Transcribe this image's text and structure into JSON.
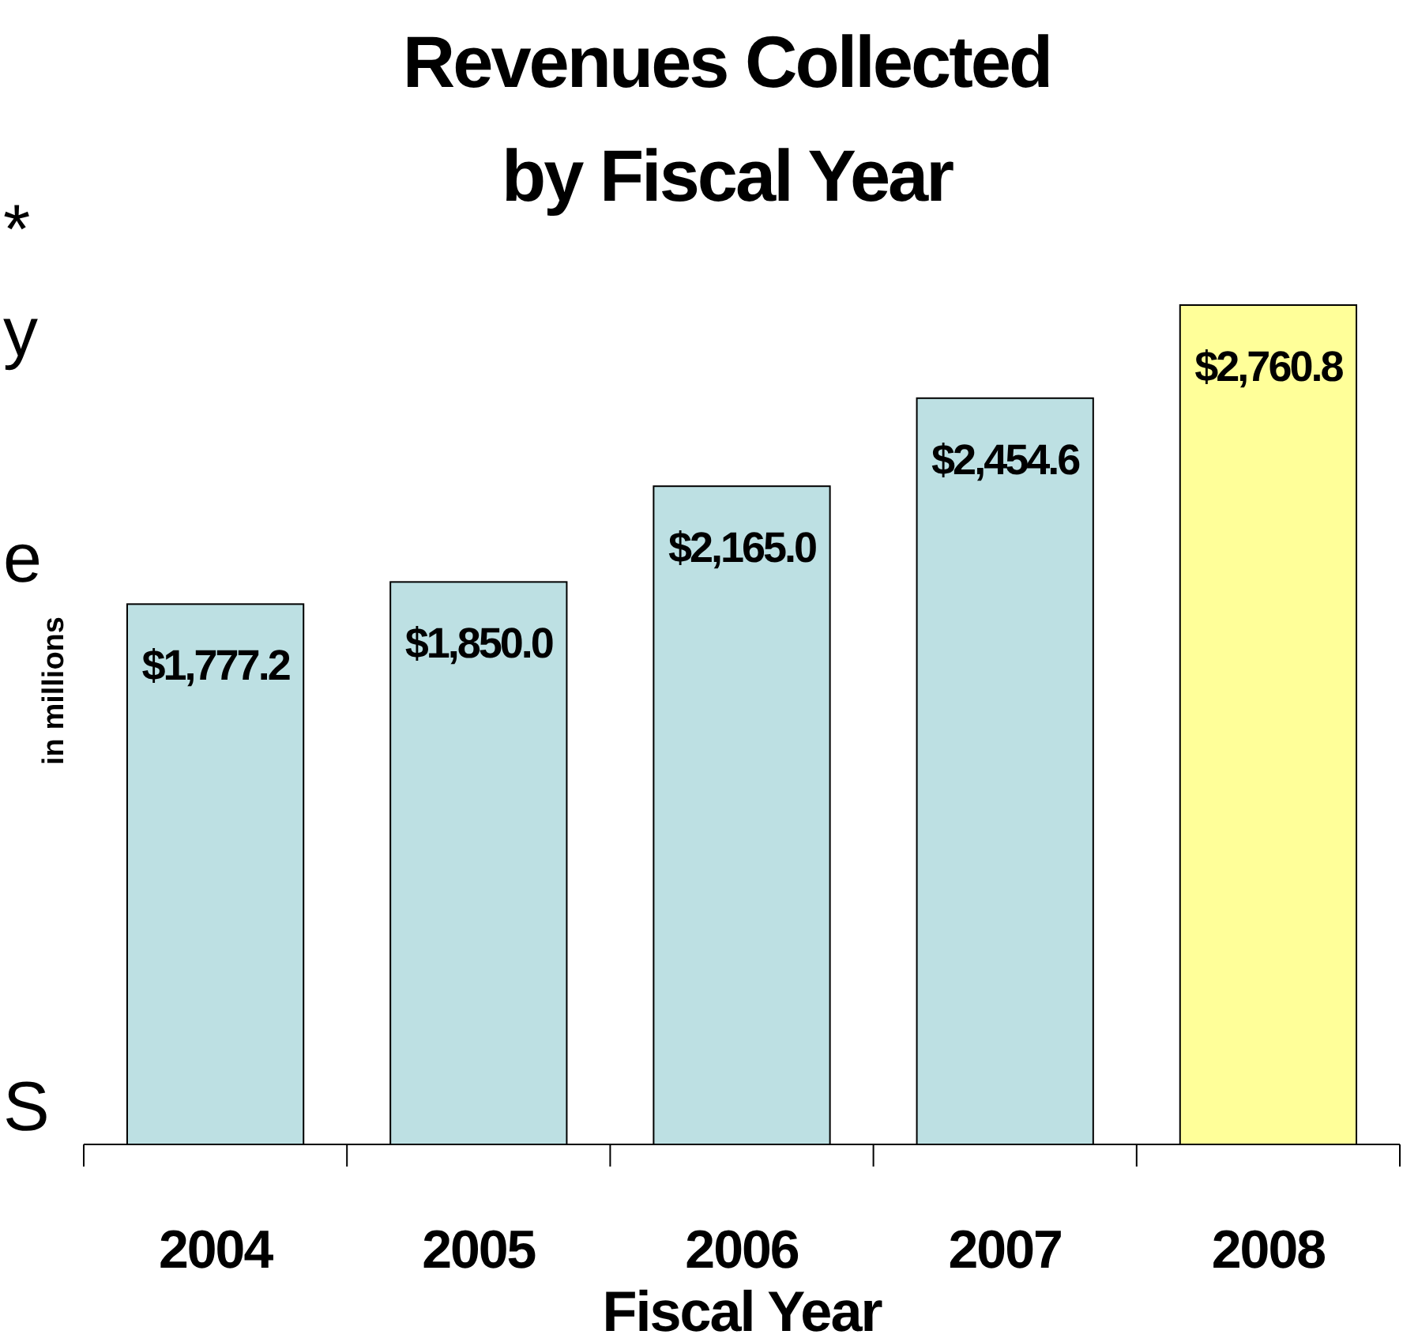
{
  "chart_data": {
    "type": "bar",
    "title": "Revenues Collected by Fiscal Year",
    "xlabel": "Fiscal Year",
    "ylabel": "in millions",
    "categories": [
      "2004",
      "2005",
      "2006",
      "2007",
      "2008"
    ],
    "values": [
      1777.2,
      1850.0,
      2165.0,
      2454.6,
      2760.8
    ],
    "colors": [
      "#bde0e3",
      "#bde0e3",
      "#bde0e3",
      "#bde0e3",
      "#ffff99"
    ],
    "value_labels": [
      "$1,777.2",
      "$1,850.0",
      "$2,165.0",
      "$2,454.6",
      "$2,760.8"
    ],
    "annotations": [
      "*",
      "y",
      "e",
      "S"
    ]
  }
}
